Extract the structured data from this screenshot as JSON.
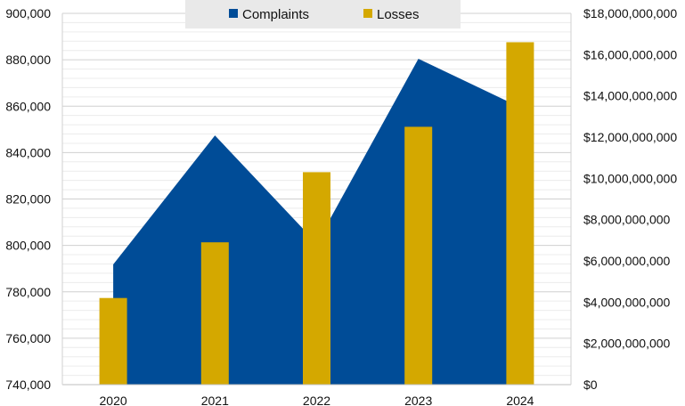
{
  "chart_data": {
    "type": "bar",
    "categories": [
      "2020",
      "2021",
      "2022",
      "2023",
      "2024"
    ],
    "series": [
      {
        "name": "Complaints",
        "chart_type": "area",
        "axis": "left",
        "color": "#004C97",
        "values": [
          791790,
          847376,
          800944,
          880418,
          859532
        ]
      },
      {
        "name": "Losses",
        "chart_type": "bar",
        "axis": "right",
        "color": "#D4A800",
        "values": [
          4200000000,
          6900000000,
          10300000000,
          12500000000,
          16600000000
        ]
      }
    ],
    "left_axis": {
      "ylim": [
        740000,
        900000
      ],
      "ticks": [
        740000,
        760000,
        780000,
        800000,
        820000,
        840000,
        860000,
        880000,
        900000
      ],
      "tick_labels": [
        "740,000",
        "760,000",
        "780,000",
        "800,000",
        "820,000",
        "840,000",
        "860,000",
        "880,000",
        "900,000"
      ]
    },
    "right_axis": {
      "ylim": [
        0,
        18000000000
      ],
      "ticks": [
        0,
        2000000000,
        4000000000,
        6000000000,
        8000000000,
        10000000000,
        12000000000,
        14000000000,
        16000000000,
        18000000000
      ],
      "tick_labels": [
        "$0",
        "$2,000,000,000",
        "$4,000,000,000",
        "$6,000,000,000",
        "$8,000,000,000",
        "$10,000,000,000",
        "$12,000,000,000",
        "$14,000,000,000",
        "$16,000,000,000",
        "$18,000,000,000"
      ]
    },
    "legend": {
      "position": "top-center",
      "entries": [
        "Complaints",
        "Losses"
      ]
    },
    "grid": true,
    "title": "",
    "xlabel": "",
    "ylabel": ""
  }
}
